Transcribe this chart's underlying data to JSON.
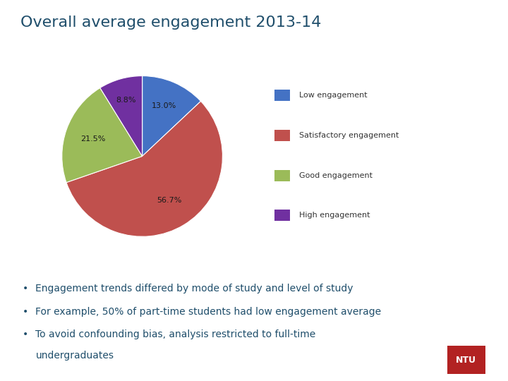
{
  "title": "Overall average engagement 2013-14",
  "title_color": "#1F4E6B",
  "title_fontsize": 16,
  "background_color": "#ffffff",
  "slices": [
    13.0,
    56.7,
    21.5,
    8.8
  ],
  "slice_labels": [
    "13.0%",
    "56.7%",
    "21.5%",
    "8.8%"
  ],
  "slice_colors": [
    "#4472C4",
    "#C0504D",
    "#9BBB59",
    "#7030A0"
  ],
  "legend_labels": [
    "Low engagement",
    "Satisfactory engagement",
    "Good engagement",
    "High engagement"
  ],
  "startangle": 90,
  "bullet_points": [
    "Engagement trends differed by mode of study and level of study",
    "For example, 50% of part-time students had low engagement average",
    "To avoid confounding bias, analysis restricted to full-time",
    "undergraduates"
  ],
  "bullet_color": "#1F4E6B",
  "bullet_fontsize": 10,
  "ntu_badge_color": "#B22222",
  "ntu_text_color": "#ffffff"
}
